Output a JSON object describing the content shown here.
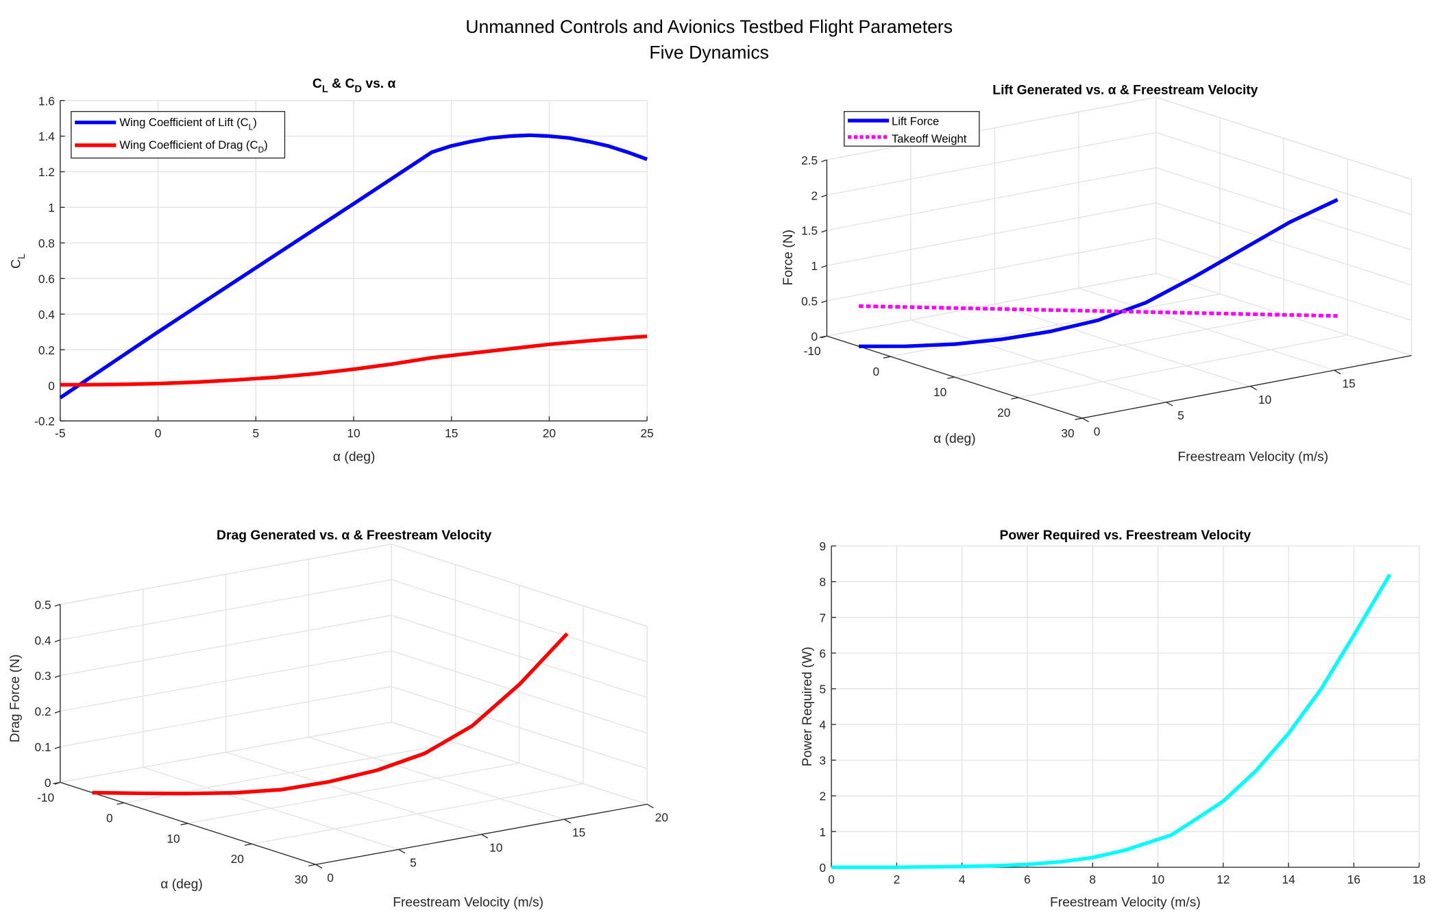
{
  "figure": {
    "title_line1": "Unmanned Controls and Avionics Testbed Flight Parameters",
    "title_line2": "Five Dynamics"
  },
  "chart_data": [
    {
      "type": "line",
      "title_parts": [
        "C",
        "L",
        " & C",
        "D",
        " vs. α"
      ],
      "xlabel": "α (deg)",
      "ylabel_parts": [
        "C",
        "L"
      ],
      "xlim": [
        -5,
        25
      ],
      "ylim": [
        -0.2,
        1.6
      ],
      "xticks": [
        -5,
        0,
        5,
        10,
        15,
        20,
        25
      ],
      "yticks": [
        -0.2,
        0,
        0.2,
        0.4,
        0.6,
        0.8,
        1,
        1.2,
        1.4,
        1.6
      ],
      "grid": true,
      "legend_location": "top-left",
      "series": [
        {
          "name_parts": [
            "Wing Coefficient of Lift (C",
            "L",
            ")"
          ],
          "color": "#0000ff",
          "x": [
            -5,
            0,
            5,
            10,
            14,
            15,
            16,
            17,
            18,
            19,
            20,
            21,
            22,
            23,
            24,
            25
          ],
          "y": [
            -0.07,
            0.3,
            0.66,
            1.02,
            1.31,
            1.345,
            1.37,
            1.39,
            1.4,
            1.405,
            1.4,
            1.39,
            1.37,
            1.345,
            1.31,
            1.27
          ]
        },
        {
          "name_parts": [
            "Wing Coefficient of Drag (C",
            "D",
            ")"
          ],
          "color": "#ff0000",
          "x": [
            -5,
            -4,
            -2,
            0,
            2,
            4,
            6,
            8,
            10,
            12,
            14,
            16,
            18,
            20,
            22,
            24,
            25
          ],
          "y": [
            0.003,
            0.003,
            0.005,
            0.01,
            0.018,
            0.03,
            0.045,
            0.065,
            0.09,
            0.12,
            0.155,
            0.18,
            0.205,
            0.23,
            0.25,
            0.268,
            0.275
          ]
        }
      ]
    },
    {
      "type": "line3d",
      "title": "Lift Generated vs. α & Freestream Velocity",
      "xlabel": "α (deg)",
      "ylabel": "Freestream Velocity (m/s)",
      "zlabel": "Force (N)",
      "alpha_lim": [
        -10,
        30
      ],
      "v_lim": [
        0,
        19.6
      ],
      "z_lim": [
        0,
        2.5
      ],
      "alpha_ticks": [
        -10,
        0,
        10,
        20,
        30
      ],
      "v_ticks": [
        0,
        5,
        10,
        15
      ],
      "z_ticks": [
        0,
        0.5,
        1,
        1.5,
        2,
        2.5
      ],
      "grid": true,
      "legend_location": "top-left",
      "series": [
        {
          "name": "Lift Force",
          "color": "#0000ff",
          "style": "solid",
          "alpha": [
            -5,
            -2,
            1,
            4,
            7,
            10,
            13,
            16,
            19,
            22,
            25
          ],
          "v": [
            0,
            1.71,
            3.42,
            5.13,
            6.84,
            8.55,
            10.26,
            11.97,
            13.68,
            15.39,
            17.1
          ],
          "z": [
            0,
            0.01,
            0.05,
            0.13,
            0.25,
            0.42,
            0.68,
            1.05,
            1.45,
            1.85,
            2.18
          ]
        },
        {
          "name": "Takeoff Weight",
          "color": "#ff00ff",
          "style": "dotted",
          "alpha": [
            -5,
            25
          ],
          "v": [
            0,
            17.1
          ],
          "z": [
            0.57,
            0.53
          ]
        }
      ]
    },
    {
      "type": "line3d",
      "title": "Drag Generated vs. α & Freestream Velocity",
      "xlabel": "α (deg)",
      "ylabel": "Freestream Velocity (m/s)",
      "zlabel": "Drag Force (N)",
      "alpha_lim": [
        -10,
        30
      ],
      "v_lim": [
        0,
        20
      ],
      "z_lim": [
        0,
        0.5
      ],
      "alpha_ticks": [
        -10,
        0,
        10,
        20,
        30
      ],
      "v_ticks": [
        0,
        5,
        10,
        15,
        20
      ],
      "z_ticks": [
        0,
        0.1,
        0.2,
        0.3,
        0.4,
        0.5
      ],
      "grid": true,
      "series": [
        {
          "color": "#ff0000",
          "style": "solid",
          "alpha": [
            -5,
            -2,
            1,
            4,
            7,
            10,
            13,
            16,
            19,
            22,
            25
          ],
          "v": [
            0,
            1.71,
            3.42,
            5.13,
            6.84,
            8.55,
            10.26,
            11.97,
            13.68,
            15.39,
            17.1
          ],
          "z": [
            0,
            0.001,
            0.003,
            0.008,
            0.02,
            0.045,
            0.08,
            0.13,
            0.21,
            0.33,
            0.475
          ]
        }
      ]
    },
    {
      "type": "line",
      "title": "Power Required vs. Freestream Velocity",
      "xlabel": "Freestream Velocity (m/s)",
      "ylabel": "Power Required (W)",
      "xlim": [
        0,
        18
      ],
      "ylim": [
        0,
        9
      ],
      "xticks": [
        0,
        2,
        4,
        6,
        8,
        10,
        12,
        14,
        16,
        18
      ],
      "yticks": [
        0,
        1,
        2,
        3,
        4,
        5,
        6,
        7,
        8,
        9
      ],
      "grid": true,
      "series": [
        {
          "color": "#00ffff",
          "x": [
            0,
            2,
            4,
            5,
            6,
            7,
            8,
            9,
            10,
            10.4,
            11,
            12,
            13,
            14,
            15,
            16,
            17.1
          ],
          "y": [
            0,
            0,
            0.02,
            0.04,
            0.08,
            0.15,
            0.27,
            0.48,
            0.78,
            0.9,
            1.25,
            1.85,
            2.7,
            3.75,
            5.0,
            6.5,
            8.2
          ]
        }
      ]
    }
  ]
}
